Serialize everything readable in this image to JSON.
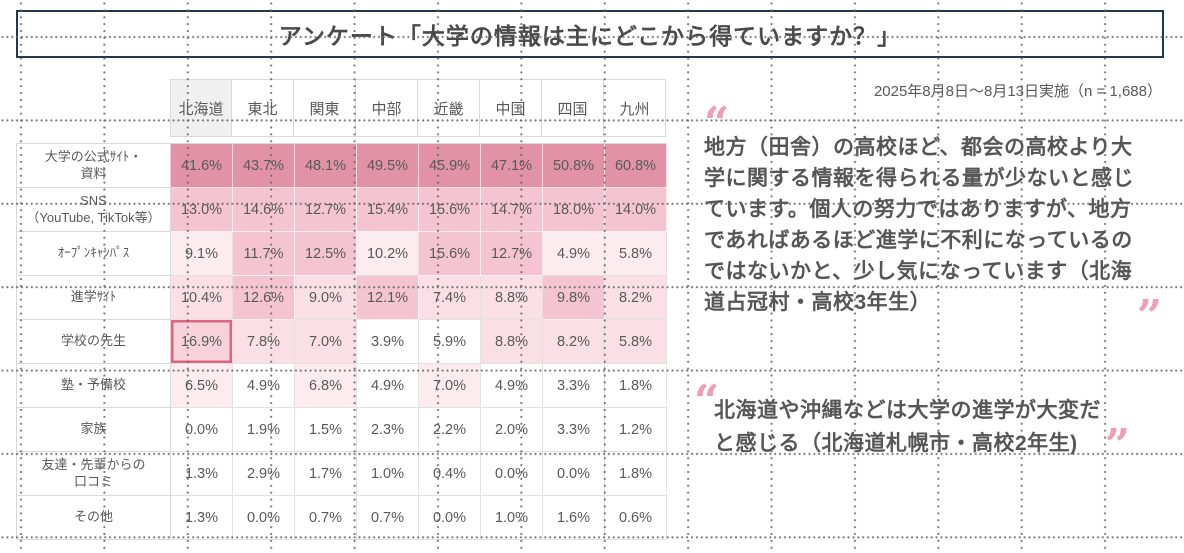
{
  "page": {
    "title": "アンケート「大学の情報は主にどこから得ていますか？」",
    "survey_meta": "2025年8月8日～8月13日実施（n = 1,688）"
  },
  "chart_data": {
    "type": "heatmap",
    "title": "アンケート「大学の情報は主にどこから得ていますか？」",
    "subtitle": "2025年8月8日～8月13日実施（n = 1,688）",
    "sample_size": 1688,
    "unit": "%",
    "legend": "none",
    "grid": "dotted background grid",
    "columns": [
      "北海道",
      "東北",
      "関東",
      "中部",
      "近畿",
      "中国",
      "四国",
      "九州"
    ],
    "highlighted_header_index": 0,
    "highlight_cell": {
      "row_index": 4,
      "col_index": 0
    },
    "rows": [
      {
        "label_lines": [
          "大学の公式ｻｲﾄ・",
          "資料"
        ],
        "values": [
          41.6,
          43.7,
          48.1,
          49.5,
          45.9,
          47.1,
          50.8,
          60.8
        ],
        "levels": [
          4,
          4,
          4,
          4,
          4,
          4,
          4,
          4
        ]
      },
      {
        "label_lines": [
          "SNS",
          "（YouTube, TikTok等）"
        ],
        "values": [
          13.0,
          14.6,
          12.7,
          15.4,
          15.6,
          14.7,
          18.0,
          14.0
        ],
        "levels": [
          3,
          3,
          3,
          3,
          3,
          3,
          3,
          3
        ]
      },
      {
        "label_lines": [
          "ｵｰﾌﾟﾝｷｬﾝﾊﾟｽ"
        ],
        "values": [
          9.1,
          11.7,
          12.5,
          10.2,
          15.6,
          12.7,
          4.9,
          5.8
        ],
        "levels": [
          1,
          3,
          3,
          1,
          3,
          3,
          1,
          1
        ]
      },
      {
        "label_lines": [
          "進学ｻｲﾄ"
        ],
        "values": [
          10.4,
          12.6,
          9.0,
          12.1,
          7.4,
          8.8,
          9.8,
          8.2
        ],
        "levels": [
          2,
          3,
          2,
          3,
          2,
          2,
          3,
          2
        ]
      },
      {
        "label_lines": [
          "学校の先生"
        ],
        "values": [
          16.9,
          7.8,
          7.0,
          3.9,
          5.9,
          8.8,
          8.2,
          5.8
        ],
        "levels": [
          2,
          2,
          2,
          0,
          0,
          2,
          2,
          2
        ]
      },
      {
        "label_lines": [
          "塾・予備校"
        ],
        "values": [
          6.5,
          4.9,
          6.8,
          4.9,
          7.0,
          4.9,
          3.3,
          1.8
        ],
        "levels": [
          1,
          0,
          1,
          0,
          1,
          0,
          0,
          0
        ]
      },
      {
        "label_lines": [
          "家族"
        ],
        "values": [
          0.0,
          1.9,
          1.5,
          2.3,
          2.2,
          2.0,
          3.3,
          1.2
        ],
        "levels": [
          0,
          0,
          0,
          0,
          0,
          0,
          0,
          0
        ]
      },
      {
        "label_lines": [
          "友達・先輩からの",
          "口コミ"
        ],
        "values": [
          1.3,
          2.9,
          1.7,
          1.0,
          0.4,
          0.0,
          0.0,
          1.8
        ],
        "levels": [
          0,
          0,
          0,
          0,
          0,
          0,
          0,
          0
        ]
      },
      {
        "label_lines": [
          "その他"
        ],
        "values": [
          1.3,
          0.0,
          0.7,
          0.7,
          0.0,
          1.0,
          1.6,
          0.6
        ],
        "levels": [
          0,
          0,
          0,
          0,
          0,
          0,
          0,
          0
        ]
      }
    ]
  },
  "quotes": [
    {
      "text": "地方（田舎）の高校ほど、都会の高校より大学に関する情報を得られる量が少ないと感じています。個人の努力ではありますが、地方であればあるほど進学に不利になっているのではないかと、少し気になっています（北海道占冠村・高校3年生）"
    },
    {
      "text": "北海道や沖縄などは大学の進学が大変だと感じる（北海道札幌市・高校2年生)"
    }
  ],
  "icons": {
    "open_quote": "“",
    "close_quote": "”"
  },
  "colors": {
    "heat": [
      "#ffffff",
      "#fcecf0",
      "#fadfe6",
      "#f4c5d1",
      "#e192a7"
    ],
    "highlight_border": "#dd6581",
    "highlight_cell_bg": "#f8d3dc",
    "header_highlight_bg": "#f0f0f0",
    "title_border": "#24384e",
    "table_border": "#d9d9d9",
    "text": "#595959",
    "quote_mark": "#ef9fb3",
    "grid_dot": "#646464"
  }
}
